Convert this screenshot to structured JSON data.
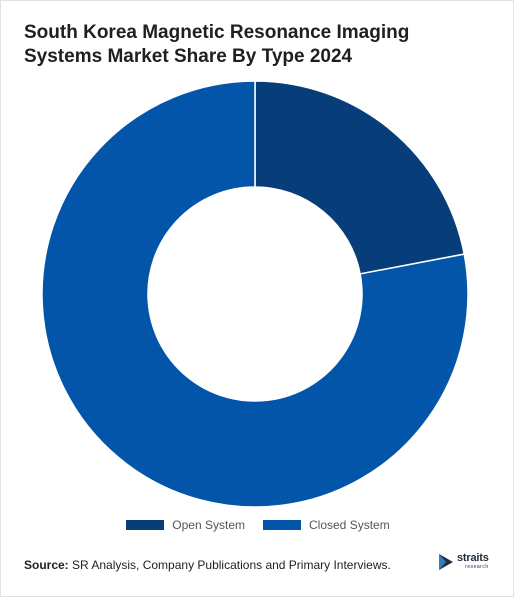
{
  "title": "South Korea Magnetic Resonance Imaging Systems Market Share By Type 2024",
  "chart_data": {
    "type": "pie",
    "donut": true,
    "title": "South Korea Magnetic Resonance Imaging Systems Market Share By Type 2024",
    "categories": [
      "Open System",
      "Closed System"
    ],
    "values": [
      22,
      78
    ],
    "unit": "%",
    "colors": [
      "#073e7a",
      "#0255a8"
    ],
    "legend_placement": "bottom",
    "start_angle": "top, clockwise"
  },
  "legend": {
    "items": [
      {
        "label": "Open System",
        "color": "#073e7a"
      },
      {
        "label": "Closed System",
        "color": "#0255a8"
      }
    ]
  },
  "footer": {
    "source_label": "Source:",
    "source_text": " SR Analysis, Company Publications and Primary Interviews."
  },
  "logo": {
    "name": "straits",
    "sub": "research",
    "icon": "straits-logo-icon"
  }
}
